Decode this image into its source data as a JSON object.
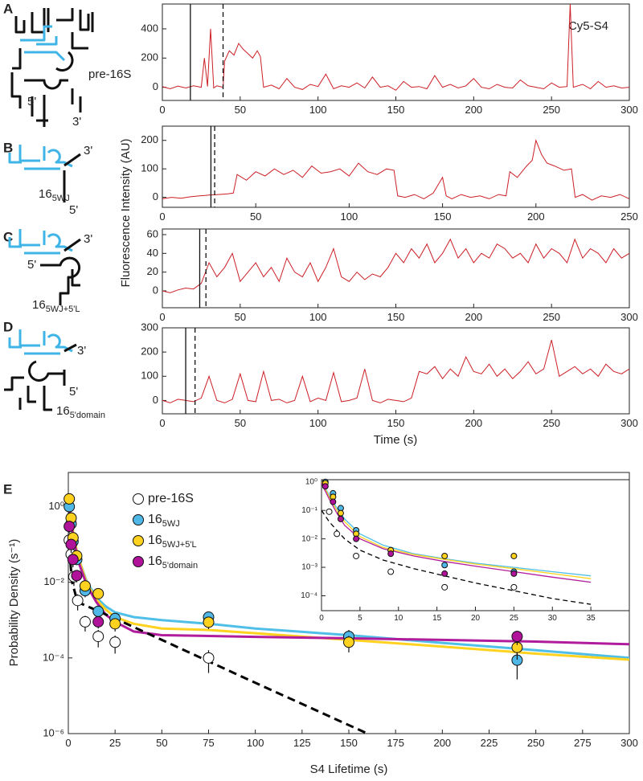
{
  "panel_letters": [
    "A",
    "B",
    "C",
    "D",
    "E"
  ],
  "shared_ylabel": "Fluorescence Intensity (AU)",
  "shared_xlabel": "Time (s)",
  "diagrams": [
    {
      "name": "pre-16S",
      "five": "5'",
      "three": "3'"
    },
    {
      "name": "16",
      "sub": "5WJ",
      "three": "3'",
      "five": "5'"
    },
    {
      "name": "16",
      "sub": "5WJ+5'L",
      "three": "3'",
      "five": "5'"
    },
    {
      "name": "16",
      "sub": "5'domain",
      "three": "3'",
      "five": "5'"
    }
  ],
  "chart_data": [
    {
      "type": "line",
      "annotation": "Cy5-S4",
      "color": "#cc1f26",
      "x": [
        0,
        5,
        10,
        15,
        20,
        25,
        27,
        29,
        31,
        33,
        35,
        39,
        40,
        43,
        46,
        49,
        52,
        55,
        58,
        61,
        63,
        65,
        70,
        75,
        80,
        85,
        90,
        95,
        100,
        105,
        110,
        115,
        120,
        125,
        130,
        135,
        140,
        145,
        150,
        155,
        160,
        165,
        170,
        175,
        180,
        185,
        190,
        195,
        200,
        205,
        210,
        215,
        220,
        225,
        230,
        235,
        240,
        245,
        250,
        255,
        260,
        262,
        264,
        270,
        275,
        280,
        285,
        290,
        295,
        300
      ],
      "values": [
        5,
        -10,
        8,
        -5,
        10,
        0,
        200,
        5,
        400,
        -5,
        10,
        0,
        180,
        250,
        220,
        300,
        260,
        230,
        200,
        250,
        210,
        0,
        15,
        -10,
        60,
        0,
        -15,
        20,
        5,
        90,
        -10,
        10,
        0,
        30,
        -5,
        70,
        0,
        10,
        -20,
        40,
        0,
        5,
        -10,
        80,
        0,
        20,
        -5,
        10,
        60,
        0,
        -10,
        20,
        0,
        -5,
        50,
        10,
        0,
        -10,
        30,
        0,
        5,
        570,
        0,
        20,
        -10,
        40,
        0,
        10,
        -5,
        0
      ],
      "xlim": [
        0,
        300
      ],
      "xticks": [
        0,
        50,
        100,
        150,
        200,
        250,
        300
      ],
      "ylim": [
        -90,
        570
      ],
      "yticks": [
        0,
        200,
        400
      ],
      "vlines": [
        18,
        39
      ],
      "vline_styles": [
        "solid",
        "dashed"
      ]
    },
    {
      "type": "line",
      "color": "#cc1f26",
      "x": [
        0,
        5,
        10,
        15,
        20,
        25,
        30,
        35,
        38,
        40,
        45,
        50,
        55,
        60,
        65,
        70,
        75,
        80,
        85,
        90,
        95,
        100,
        105,
        110,
        115,
        120,
        124,
        126,
        130,
        135,
        140,
        145,
        150,
        152,
        155,
        160,
        165,
        170,
        175,
        180,
        184,
        186,
        190,
        195,
        198,
        200,
        203,
        206,
        210,
        215,
        219,
        221,
        225,
        230,
        235,
        240,
        245,
        250
      ],
      "values": [
        -5,
        0,
        -3,
        2,
        5,
        8,
        10,
        12,
        15,
        80,
        60,
        90,
        75,
        100,
        80,
        95,
        70,
        110,
        85,
        90,
        100,
        75,
        120,
        90,
        80,
        100,
        95,
        5,
        0,
        10,
        -5,
        15,
        70,
        5,
        -5,
        10,
        0,
        5,
        -5,
        10,
        5,
        90,
        70,
        110,
        130,
        200,
        150,
        120,
        110,
        95,
        100,
        0,
        10,
        -10,
        5,
        0,
        10,
        -5
      ],
      "xlim": [
        0,
        250
      ],
      "xticks": [
        0,
        50,
        100,
        150,
        200,
        250
      ],
      "ylim": [
        -35,
        250
      ],
      "yticks": [
        0,
        100,
        200
      ],
      "vlines": [
        26,
        28
      ],
      "vline_styles": [
        "solid",
        "dashed"
      ]
    },
    {
      "type": "line",
      "color": "#cc1f26",
      "x": [
        0,
        5,
        10,
        15,
        20,
        25,
        30,
        35,
        40,
        45,
        50,
        55,
        60,
        65,
        70,
        75,
        80,
        85,
        90,
        95,
        100,
        105,
        110,
        115,
        120,
        125,
        130,
        135,
        140,
        145,
        150,
        155,
        160,
        165,
        170,
        175,
        180,
        185,
        190,
        195,
        200,
        205,
        210,
        215,
        220,
        225,
        230,
        235,
        240,
        245,
        250,
        255,
        260,
        265,
        270,
        275,
        280,
        285,
        290,
        295,
        300
      ],
      "values": [
        0,
        -2,
        1,
        3,
        2,
        8,
        30,
        15,
        25,
        40,
        10,
        20,
        30,
        15,
        25,
        10,
        35,
        20,
        15,
        30,
        10,
        25,
        45,
        15,
        10,
        20,
        12,
        18,
        15,
        25,
        40,
        30,
        45,
        35,
        50,
        30,
        40,
        55,
        35,
        45,
        30,
        40,
        35,
        50,
        45,
        35,
        40,
        30,
        50,
        35,
        45,
        40,
        30,
        55,
        35,
        45,
        40,
        30,
        45,
        35,
        40
      ],
      "xlim": [
        0,
        300
      ],
      "xticks": [
        0,
        50,
        100,
        150,
        200,
        250,
        300
      ],
      "ylim": [
        -18,
        66
      ],
      "yticks": [
        0,
        20,
        40,
        60
      ],
      "vlines": [
        24,
        28
      ],
      "vline_styles": [
        "solid",
        "dashed"
      ]
    },
    {
      "type": "line",
      "color": "#cc1f26",
      "x": [
        0,
        5,
        10,
        15,
        20,
        25,
        30,
        35,
        40,
        45,
        50,
        55,
        60,
        65,
        70,
        75,
        80,
        85,
        90,
        95,
        100,
        105,
        110,
        115,
        120,
        125,
        130,
        135,
        140,
        145,
        150,
        155,
        160,
        165,
        170,
        175,
        180,
        185,
        190,
        195,
        200,
        205,
        210,
        215,
        220,
        225,
        230,
        235,
        240,
        245,
        250,
        255,
        260,
        265,
        270,
        275,
        280,
        285,
        290,
        295,
        300
      ],
      "values": [
        0,
        -10,
        5,
        0,
        -5,
        10,
        100,
        0,
        -10,
        5,
        110,
        0,
        -5,
        120,
        0,
        5,
        -10,
        0,
        100,
        -5,
        10,
        0,
        115,
        -5,
        0,
        10,
        130,
        0,
        -10,
        5,
        0,
        -5,
        10,
        120,
        110,
        140,
        90,
        130,
        100,
        180,
        120,
        110,
        150,
        100,
        130,
        90,
        120,
        160,
        110,
        130,
        250,
        100,
        120,
        140,
        110,
        130,
        100,
        150,
        120,
        110,
        130
      ],
      "xlim": [
        0,
        300
      ],
      "xticks": [
        0,
        50,
        100,
        150,
        200,
        250,
        300
      ],
      "ylim": [
        -55,
        300
      ],
      "yticks": [
        0,
        100,
        200,
        300
      ],
      "vlines": [
        15,
        21
      ],
      "vline_styles": [
        "solid",
        "dashed"
      ]
    },
    {
      "type": "scatter",
      "log_y": true,
      "xlabel": "S4 Lifetime (s)",
      "ylabel": "Probability Density (s⁻¹)",
      "xlim": [
        0,
        300
      ],
      "xticks": [
        0,
        25,
        50,
        75,
        100,
        125,
        150,
        175,
        200,
        225,
        250,
        275,
        300
      ],
      "ylim": [
        1e-06,
        8
      ],
      "yticks": [
        {
          "value": 1,
          "label": "10⁰"
        },
        {
          "value": 0.01,
          "label": "10⁻²"
        },
        {
          "value": 0.0001,
          "label": "10⁻⁴"
        },
        {
          "value": 1e-06,
          "label": "10⁻⁶"
        }
      ],
      "series": [
        {
          "name": "pre-16S",
          "color": "#ffffff",
          "x": [
            0.5,
            1.5,
            3,
            5,
            9,
            16,
            25,
            75
          ],
          "values": [
            0.13,
            0.055,
            0.014,
            0.0033,
            0.0009,
            0.00037,
            0.00026,
            0.0001
          ],
          "errors": [
            0.05,
            0.02,
            0.006,
            0.0015,
            0.0004,
            0.00018,
            0.00013,
            6e-05
          ]
        },
        {
          "name": "16",
          "subscript": "5WJ",
          "color": "#4fb8e6",
          "x": [
            0.5,
            1.5,
            2.5,
            4.5,
            9,
            16,
            25,
            75,
            150,
            240
          ],
          "values": [
            1,
            0.35,
            0.12,
            0.04,
            0.006,
            0.0017,
            0.0011,
            0.0012,
            0.00037,
            8.7e-05
          ],
          "errors": [
            0.2,
            0.08,
            0.03,
            0.01,
            0.002,
            0.0006,
            0.0004,
            0.0004,
            0.00018,
            6e-05
          ]
        },
        {
          "name": "16",
          "subscript": "5WJ+5'L",
          "color": "#ffd21f",
          "x": [
            0.5,
            1.5,
            2.5,
            4.5,
            9,
            16,
            25,
            75,
            150,
            240
          ],
          "values": [
            1.6,
            0.5,
            0.15,
            0.05,
            0.008,
            0.005,
            0.0008,
            0.00088,
            0.00026,
            0.00019
          ],
          "errors": [
            0.3,
            0.1,
            0.04,
            0.015,
            0.002,
            0.0012,
            0.0003,
            0.0003,
            0.00012,
            0.0001
          ]
        },
        {
          "name": "16",
          "subscript": "5'domain",
          "color": "#b0139a",
          "x": [
            0.5,
            1.5,
            2.5,
            4.5,
            16,
            240
          ],
          "values": [
            0.3,
            0.1,
            0.04,
            0.015,
            0.0009,
            0.00037
          ],
          "errors": [
            0.1,
            0.04,
            0.015,
            0.005,
            0.0003,
            0.00015
          ]
        }
      ],
      "fits": [
        {
          "color": "#4fbfe8",
          "dashed": false,
          "x": [
            0,
            2,
            5,
            10,
            15,
            20,
            25,
            35,
            50,
            75,
            100,
            150,
            200,
            250,
            300
          ],
          "values": [
            2,
            0.3,
            0.05,
            0.01,
            0.004,
            0.0023,
            0.0016,
            0.0012,
            0.001,
            0.0008,
            0.0006,
            0.0004,
            0.00025,
            0.00016,
            0.0001
          ]
        },
        {
          "color": "#ffd21f",
          "dashed": false,
          "x": [
            0,
            2,
            5,
            10,
            15,
            20,
            25,
            35,
            50,
            75,
            100,
            150,
            200,
            250,
            300
          ],
          "values": [
            1.8,
            0.3,
            0.05,
            0.009,
            0.0035,
            0.0019,
            0.0012,
            0.0008,
            0.0006,
            0.00055,
            0.00045,
            0.0003,
            0.0002,
            0.00013,
            9e-05
          ]
        },
        {
          "color": "#b01c9c",
          "dashed": false,
          "x": [
            0,
            2,
            5,
            10,
            15,
            20,
            25,
            35,
            50,
            75,
            100,
            150,
            200,
            250,
            300
          ],
          "values": [
            1.5,
            0.25,
            0.04,
            0.008,
            0.003,
            0.0014,
            0.0009,
            0.0005,
            0.0004,
            0.00038,
            0.00036,
            0.00033,
            0.0003,
            0.00027,
            0.00023
          ]
        },
        {
          "color": "#000000",
          "dashed": true,
          "x": [
            0,
            2,
            5,
            25,
            50,
            100,
            160
          ],
          "values": [
            0.15,
            0.01,
            0.003,
            0.0011,
            0.0003,
            2.2e-05,
            1e-06
          ]
        }
      ]
    },
    {
      "type": "scatter",
      "log_y": true,
      "xlim": [
        0,
        40
      ],
      "xticks": [
        0,
        5,
        10,
        15,
        20,
        25,
        30,
        35
      ],
      "ylim": [
        3e-05,
        1.2
      ],
      "yticks": [
        {
          "value": 1,
          "label": "10⁰"
        },
        {
          "value": 0.1,
          "label": "10⁻¹"
        },
        {
          "value": 0.01,
          "label": "10⁻²"
        },
        {
          "value": 0.001,
          "label": "10⁻³"
        },
        {
          "value": 0.0001,
          "label": "10⁻⁴"
        }
      ],
      "series": [
        {
          "color": "#ffffff",
          "x": [
            1,
            2,
            4.5,
            9,
            16,
            25
          ],
          "values": [
            0.09,
            0.015,
            0.0025,
            0.0007,
            0.0002,
            0.0002
          ]
        },
        {
          "color": "#4fb8e6",
          "x": [
            0.5,
            1.5,
            2.5,
            4.5,
            9,
            16,
            25
          ],
          "values": [
            1,
            0.4,
            0.12,
            0.02,
            0.004,
            0.0012,
            0.0007
          ]
        },
        {
          "color": "#ffd21f",
          "x": [
            0.5,
            1.5,
            2.5,
            4.5,
            9,
            16,
            25
          ],
          "values": [
            0.9,
            0.3,
            0.08,
            0.015,
            0.004,
            0.0025,
            0.0025
          ]
        },
        {
          "color": "#b0139a",
          "x": [
            0.5,
            1.5,
            2.5,
            4.5,
            9,
            16,
            25
          ],
          "values": [
            0.7,
            0.2,
            0.05,
            0.01,
            0.003,
            0.0006,
            0.0006
          ]
        }
      ],
      "fits": [
        {
          "color": "#4fbfe8",
          "dashed": false,
          "x": [
            0,
            1,
            2,
            3,
            5,
            8,
            12,
            16,
            20,
            25,
            30,
            35
          ],
          "values": [
            1,
            0.35,
            0.12,
            0.05,
            0.015,
            0.006,
            0.003,
            0.002,
            0.0014,
            0.001,
            0.0007,
            0.0005
          ]
        },
        {
          "color": "#ffd21f",
          "dashed": false,
          "x": [
            0,
            1,
            2,
            3,
            5,
            8,
            12,
            16,
            20,
            25,
            30,
            35
          ],
          "values": [
            1,
            0.3,
            0.1,
            0.04,
            0.012,
            0.005,
            0.0028,
            0.0019,
            0.0013,
            0.0009,
            0.0006,
            0.0004
          ]
        },
        {
          "color": "#b01c9c",
          "dashed": false,
          "x": [
            0,
            1,
            2,
            3,
            5,
            8,
            12,
            16,
            20,
            25,
            30,
            35
          ],
          "values": [
            0.9,
            0.25,
            0.08,
            0.03,
            0.01,
            0.0045,
            0.0025,
            0.0016,
            0.0011,
            0.0007,
            0.00045,
            0.0003
          ]
        },
        {
          "color": "#000000",
          "dashed": true,
          "x": [
            0,
            1,
            2,
            3,
            5,
            8,
            12,
            16,
            20,
            25,
            30,
            35
          ],
          "values": [
            0.1,
            0.04,
            0.02,
            0.01,
            0.004,
            0.0018,
            0.0009,
            0.0005,
            0.00028,
            0.00015,
            8e-05,
            5e-05
          ]
        }
      ]
    }
  ]
}
